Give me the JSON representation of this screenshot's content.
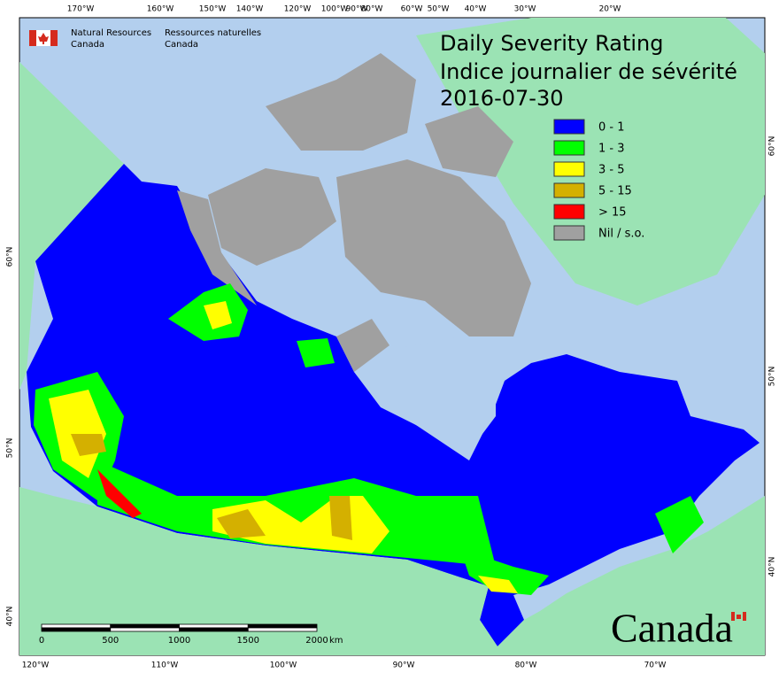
{
  "header": {
    "agency_en": [
      "Natural Resources",
      "Canada"
    ],
    "agency_fr": [
      "Ressources naturelles",
      "Canada"
    ]
  },
  "title": {
    "line1": "Daily Severity Rating",
    "line2": "Indice journalier de sévérité",
    "date": "2016-07-30"
  },
  "legend": [
    {
      "label": "0 - 1",
      "color": "#0000ff"
    },
    {
      "label": "1 - 3",
      "color": "#00ff00"
    },
    {
      "label": "3 - 5",
      "color": "#ffff00"
    },
    {
      "label": "5 - 15",
      "color": "#d4b000"
    },
    {
      "label": "> 15",
      "color": "#ff0000"
    },
    {
      "label": "Nil / s.o.",
      "color": "#a0a0a0"
    }
  ],
  "graticule": {
    "top": [
      "170°W",
      "160°W",
      "150°W",
      "140°W",
      "120°W",
      "100°W",
      "90°W",
      "80°W",
      "60°W",
      "50°W",
      "40°W",
      "30°W",
      "20°W"
    ],
    "bottom": [
      "120°W",
      "110°W",
      "100°W",
      "90°W",
      "80°W",
      "70°W"
    ],
    "left": [
      "60°N",
      "50°N",
      "40°N"
    ],
    "right": [
      "60°N",
      "50°N",
      "40°N"
    ]
  },
  "scale_bar": {
    "ticks": [
      0,
      500,
      1000,
      1500,
      2000
    ],
    "unit": "km"
  },
  "wordmark": "Canada"
}
